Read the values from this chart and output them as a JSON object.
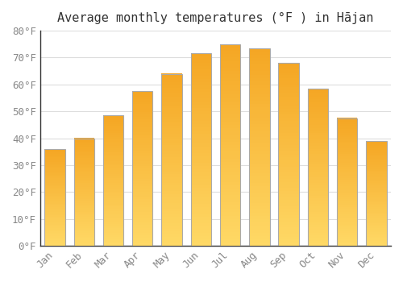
{
  "title": "Average monthly temperatures (°F ) in Hājan",
  "months": [
    "Jan",
    "Feb",
    "Mar",
    "Apr",
    "May",
    "Jun",
    "Jul",
    "Aug",
    "Sep",
    "Oct",
    "Nov",
    "Dec"
  ],
  "values": [
    36,
    40,
    48.5,
    57.5,
    64,
    71.5,
    75,
    73.5,
    68,
    58.5,
    47.5,
    39
  ],
  "bar_color_bottom": "#FFD966",
  "bar_color_top": "#F5A623",
  "bar_edge_color": "#AAAAAA",
  "background_color": "#FFFFFF",
  "grid_color": "#DDDDDD",
  "ylim": [
    0,
    80
  ],
  "yticks": [
    0,
    10,
    20,
    30,
    40,
    50,
    60,
    70,
    80
  ],
  "ytick_labels": [
    "0°F",
    "10°F",
    "20°F",
    "30°F",
    "40°F",
    "50°F",
    "60°F",
    "70°F",
    "80°F"
  ],
  "font_family": "monospace",
  "title_fontsize": 11,
  "tick_fontsize": 9,
  "tick_color": "#888888",
  "spine_color": "#333333"
}
